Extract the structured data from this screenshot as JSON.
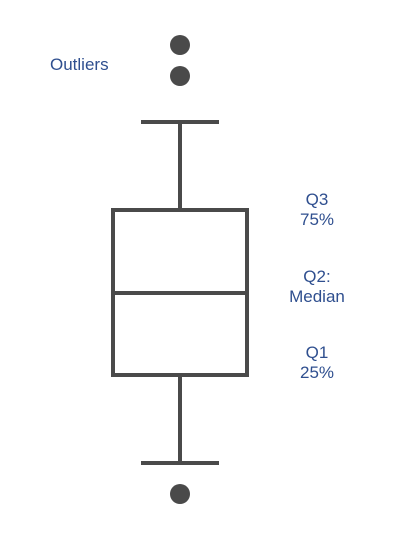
{
  "colors": {
    "shape": "#4a4a4a",
    "label": "#2f4f8f",
    "background": "#ffffff"
  },
  "labels": {
    "outliers": "Outliers",
    "q3_line1": "Q3",
    "q3_line2": "75%",
    "q2_line1": "Q2:",
    "q2_line2": "Median",
    "q1_line1": "Q1",
    "q1_line2": "25%"
  }
}
